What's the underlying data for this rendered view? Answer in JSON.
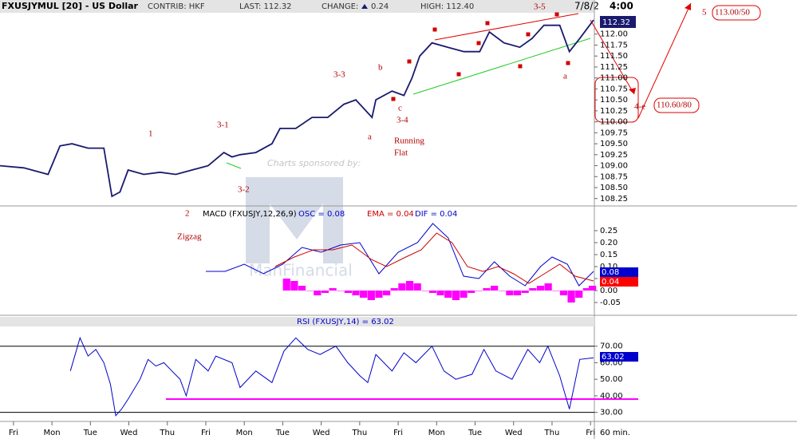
{
  "chart_data": [
    {
      "type": "line",
      "title": "FXUSJYMUL [20] - US Dollar",
      "contrib": "CONTRIB: HKF",
      "last": "LAST: 112.32",
      "change_label": "CHANGE:",
      "change": "0.24",
      "high": "HIGH: 112.40",
      "date": "7/8/2",
      "time": "4:00",
      "last_badge": "112.32",
      "xlim": [
        -0.35,
        15.1
      ],
      "ylim": [
        108.1,
        112.45
      ],
      "yticks": [
        {
          "value": 112,
          "label": "112.00"
        },
        111.75,
        {
          "value": 111.5,
          "label": "111.50"
        },
        111.25,
        {
          "value": 111,
          "label": "111.00"
        },
        110.75,
        {
          "value": 110.5,
          "label": "110.50"
        },
        110.25,
        {
          "value": 110,
          "label": "110.00"
        },
        109.75,
        {
          "value": 109.5,
          "label": "109.50"
        },
        109.25,
        {
          "value": 109,
          "label": "109.00"
        },
        108.75,
        {
          "value": 108.5,
          "label": "108.50"
        },
        108.25
      ],
      "series": [
        {
          "color": "#1a1a6e",
          "x": [
            -0.35,
            0.27,
            0.9,
            1.21,
            1.52,
            1.94,
            2.35,
            2.56,
            2.77,
            2.98,
            3.39,
            3.81,
            4.22,
            4.64,
            5.06,
            5.47,
            5.68,
            5.89,
            6.3,
            6.72,
            6.93,
            7.34,
            7.76,
            8.17,
            8.59,
            8.9,
            9.32,
            9.42,
            9.84,
            10.15,
            10.36,
            10.56,
            10.88,
            11.29,
            11.71,
            12.12,
            12.37,
            12.75,
            13.16,
            13.48,
            13.79,
            14.2,
            14.45,
            14.72,
            15.08
          ],
          "values": [
            109.0,
            108.95,
            108.8,
            109.45,
            109.5,
            109.4,
            109.4,
            108.3,
            108.4,
            108.9,
            108.8,
            108.85,
            108.8,
            108.9,
            109.0,
            109.3,
            109.2,
            109.25,
            109.3,
            109.5,
            109.85,
            109.85,
            110.1,
            110.1,
            110.4,
            110.5,
            110.1,
            110.5,
            110.7,
            110.6,
            111.0,
            111.5,
            111.8,
            111.7,
            111.6,
            111.6,
            112.05,
            111.8,
            111.7,
            111.9,
            112.2,
            112.2,
            111.6,
            111.9,
            112.32
          ]
        }
      ],
      "annotations": [
        "1",
        "3-1",
        "3-2",
        "3-3",
        "b",
        "c",
        "3-4",
        "a",
        "Running",
        "Flat",
        "3-5",
        "a",
        "5",
        "113.00/50",
        "4-e",
        "110.60/80",
        "2",
        "Zigzag"
      ]
    },
    {
      "type": "line",
      "title": "MACD (FXUSJY,12,26,9)",
      "legend": [
        "OSC = 0.08",
        "EMA = 0.04",
        "DIF = 0.04"
      ],
      "badges": [
        "0.08",
        "0.04"
      ],
      "xlim": [
        -0.35,
        15.1
      ],
      "ylim": [
        -0.1,
        0.34
      ],
      "yticks": [
        0.25,
        {
          "value": 0.2,
          "label": "0.20"
        },
        0.15,
        {
          "value": 0.1,
          "label": "0.10"
        },
        0.05,
        {
          "value": 0,
          "label": "0.00"
        },
        -0.05
      ],
      "series": [
        {
          "kind": "line",
          "color": "#0000cc",
          "x": [
            5.0,
            5.5,
            6.0,
            6.5,
            7.0,
            7.5,
            8.0,
            8.5,
            9.0,
            9.5,
            10.0,
            10.5,
            10.9,
            11.3,
            11.7,
            12.1,
            12.5,
            12.9,
            13.3,
            13.7,
            14.0,
            14.4,
            14.7,
            15.08
          ],
          "values": [
            0.08,
            0.08,
            0.11,
            0.07,
            0.11,
            0.18,
            0.16,
            0.19,
            0.2,
            0.07,
            0.16,
            0.2,
            0.28,
            0.22,
            0.06,
            0.05,
            0.12,
            0.06,
            0.02,
            0.1,
            0.14,
            0.11,
            0.02,
            0.08
          ]
        },
        {
          "kind": "line",
          "color": "#cc0000",
          "x": [
            6.8,
            7.3,
            7.8,
            8.3,
            8.8,
            9.3,
            9.7,
            10.2,
            10.6,
            11.0,
            11.4,
            11.8,
            12.2,
            12.6,
            13.0,
            13.4,
            13.8,
            14.2,
            14.6,
            15.08
          ],
          "values": [
            0.1,
            0.14,
            0.17,
            0.17,
            0.19,
            0.13,
            0.1,
            0.14,
            0.17,
            0.24,
            0.2,
            0.1,
            0.08,
            0.1,
            0.07,
            0.03,
            0.07,
            0.11,
            0.06,
            0.04
          ]
        },
        {
          "kind": "bar",
          "color": "#ff00ff",
          "x": [
            7.1,
            7.3,
            7.5,
            7.7,
            7.9,
            8.1,
            8.3,
            8.5,
            8.7,
            8.9,
            9.1,
            9.3,
            9.5,
            9.7,
            9.9,
            10.1,
            10.3,
            10.5,
            10.7,
            10.9,
            11.1,
            11.3,
            11.5,
            11.7,
            11.9,
            12.1,
            12.3,
            12.5,
            12.7,
            12.9,
            13.1,
            13.3,
            13.5,
            13.7,
            13.9,
            14.1,
            14.3,
            14.5,
            14.7,
            14.9,
            15.05
          ],
          "values": [
            0.05,
            0.04,
            0.02,
            0.0,
            -0.02,
            -0.01,
            0.01,
            0.0,
            -0.01,
            -0.02,
            -0.03,
            -0.04,
            -0.03,
            -0.02,
            0.01,
            0.03,
            0.04,
            0.03,
            0.0,
            -0.01,
            -0.02,
            -0.03,
            -0.04,
            -0.03,
            -0.01,
            0.0,
            0.01,
            0.02,
            0.0,
            -0.02,
            -0.02,
            -0.01,
            0.01,
            0.02,
            0.03,
            0.0,
            -0.02,
            -0.05,
            -0.03,
            0.01,
            0.02
          ]
        }
      ]
    },
    {
      "type": "line",
      "title": "RSI (FXUSJY,14) = 63.02",
      "badges": [
        "63.02"
      ],
      "xlim": [
        -0.35,
        15.1
      ],
      "ylim": [
        25,
        87.7
      ],
      "yticks": [
        {
          "value": 70,
          "label": "70.00"
        },
        {
          "value": 60,
          "label": "60.00"
        },
        {
          "value": 50,
          "label": "50.00"
        },
        {
          "value": 40,
          "label": "40.00"
        },
        {
          "value": 30,
          "label": "30.00"
        }
      ],
      "hlines": [
        {
          "value": 70,
          "color": "#000000"
        },
        {
          "value": 30,
          "color": "#000000"
        },
        {
          "value": 38,
          "color": "#ff00ff"
        }
      ],
      "xticks": [
        {
          "value": 0,
          "label": "Fri"
        },
        {
          "value": 1,
          "label": "Mon"
        },
        {
          "value": 2,
          "label": "Tue"
        },
        {
          "value": 3,
          "label": "Wed"
        },
        {
          "value": 4,
          "label": "Thu"
        },
        {
          "value": 5,
          "label": "Fri"
        },
        {
          "value": 6,
          "label": "Mon"
        },
        {
          "value": 7,
          "label": "Tue"
        },
        {
          "value": 8,
          "label": "Wed"
        },
        {
          "value": 9,
          "label": "Thu"
        },
        {
          "value": 10,
          "label": "Fri"
        },
        {
          "value": 11,
          "label": "Mon"
        },
        {
          "value": 12,
          "label": "Tue"
        },
        {
          "value": 13,
          "label": "Wed"
        },
        {
          "value": 14,
          "label": "Thu"
        },
        {
          "value": 15,
          "label": "Fri"
        }
      ],
      "x_label": "60 min.",
      "series": [
        {
          "color": "#0000cc",
          "x": [
            1.48,
            1.73,
            1.94,
            2.14,
            2.35,
            2.52,
            2.66,
            2.81,
            2.98,
            3.29,
            3.5,
            3.7,
            3.91,
            4.12,
            4.33,
            4.49,
            4.74,
            5.06,
            5.26,
            5.68,
            5.89,
            6.3,
            6.72,
            7.03,
            7.34,
            7.65,
            7.97,
            8.38,
            8.69,
            9.01,
            9.21,
            9.42,
            9.84,
            10.15,
            10.46,
            10.88,
            11.19,
            11.5,
            11.92,
            12.23,
            12.54,
            12.96,
            13.37,
            13.68,
            13.89,
            14.2,
            14.45,
            14.72,
            15.08
          ],
          "values": [
            55,
            75,
            64,
            68,
            60,
            47,
            28,
            32,
            38,
            50,
            62,
            58,
            60,
            55,
            50,
            40,
            62,
            55,
            64,
            60,
            45,
            55,
            48,
            67,
            75,
            68,
            65,
            70,
            60,
            52,
            48,
            65,
            55,
            66,
            60,
            70,
            55,
            50,
            53,
            68,
            55,
            50,
            68,
            60,
            70,
            52,
            32,
            62,
            63.02
          ]
        }
      ]
    }
  ],
  "watermark": {
    "sponsor": "Charts sponsored by:",
    "name": "ManFinancial"
  }
}
